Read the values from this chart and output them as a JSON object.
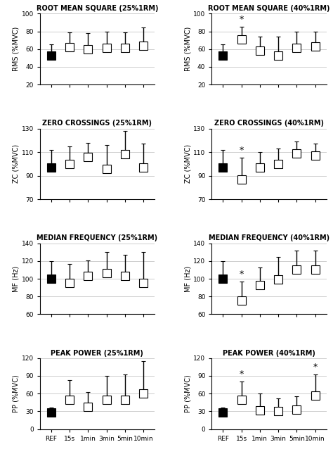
{
  "panels": [
    {
      "title": "ROOT MEAN SQUARE (25%1RM)",
      "ylabel": "RMS (%MVC)",
      "ylim": [
        20,
        100
      ],
      "yticks": [
        20,
        40,
        60,
        80,
        100
      ],
      "ref_val": 53,
      "ref_err_up": 12,
      "ref_err_dn": 0,
      "vals": [
        62,
        60,
        61,
        61,
        64
      ],
      "errs_up": [
        17,
        18,
        19,
        18,
        20
      ],
      "errs_dn": [
        0,
        0,
        0,
        0,
        0
      ],
      "stars": [
        0,
        0,
        0,
        0,
        0
      ]
    },
    {
      "title": "ROOT MEAN SQUARE (40%1RM)",
      "ylabel": "RMS (%MVC)",
      "ylim": [
        20,
        100
      ],
      "yticks": [
        20,
        40,
        60,
        80,
        100
      ],
      "ref_val": 53,
      "ref_err_up": 12,
      "ref_err_dn": 0,
      "vals": [
        71,
        58,
        53,
        61,
        63
      ],
      "errs_up": [
        14,
        16,
        21,
        19,
        17
      ],
      "errs_dn": [
        0,
        0,
        0,
        0,
        0
      ],
      "stars": [
        1,
        0,
        0,
        0,
        0
      ]
    },
    {
      "title": "ZERO CROSSINGS (25%1RM)",
      "ylabel": "ZC (%MVC)",
      "ylim": [
        70,
        130
      ],
      "yticks": [
        70,
        90,
        110,
        130
      ],
      "ref_val": 97,
      "ref_err_up": 15,
      "ref_err_dn": 0,
      "vals": [
        100,
        106,
        96,
        108,
        97
      ],
      "errs_up": [
        15,
        12,
        20,
        20,
        20
      ],
      "errs_dn": [
        0,
        0,
        0,
        0,
        0
      ],
      "stars": [
        0,
        0,
        0,
        0,
        0
      ]
    },
    {
      "title": "ZERO CROSSINGS (40%1RM)",
      "ylabel": "ZC (%MVC)",
      "ylim": [
        70,
        130
      ],
      "yticks": [
        70,
        90,
        110,
        130
      ],
      "ref_val": 97,
      "ref_err_up": 15,
      "ref_err_dn": 0,
      "vals": [
        87,
        97,
        100,
        109,
        107
      ],
      "errs_up": [
        18,
        13,
        13,
        10,
        10
      ],
      "errs_dn": [
        0,
        0,
        0,
        0,
        0
      ],
      "stars": [
        1,
        0,
        0,
        0,
        0
      ]
    },
    {
      "title": "MEDIAN FREQUENCY (25%1RM)",
      "ylabel": "MF (Hz)",
      "ylim": [
        60,
        140
      ],
      "yticks": [
        60,
        80,
        100,
        120,
        140
      ],
      "ref_val": 100,
      "ref_err_up": 20,
      "ref_err_dn": 0,
      "vals": [
        95,
        103,
        106,
        103,
        95
      ],
      "errs_up": [
        22,
        18,
        24,
        24,
        35
      ],
      "errs_dn": [
        0,
        0,
        0,
        0,
        0
      ],
      "stars": [
        0,
        0,
        0,
        0,
        0
      ]
    },
    {
      "title": "MEDIAN FREQUENCY (40%1RM)",
      "ylabel": "MF (Hz)",
      "ylim": [
        60,
        140
      ],
      "yticks": [
        60,
        80,
        100,
        120,
        140
      ],
      "ref_val": 100,
      "ref_err_up": 20,
      "ref_err_dn": 0,
      "vals": [
        75,
        93,
        99,
        110,
        110
      ],
      "errs_up": [
        22,
        20,
        26,
        22,
        22
      ],
      "errs_dn": [
        0,
        0,
        0,
        0,
        0
      ],
      "stars": [
        1,
        0,
        0,
        0,
        0
      ]
    },
    {
      "title": "PEAK POWER (25%1RM)",
      "ylabel": "PP (%MVC)",
      "ylim": [
        0,
        120
      ],
      "yticks": [
        0,
        30,
        60,
        90,
        120
      ],
      "ref_val": 28,
      "ref_err_up": 8,
      "ref_err_dn": 0,
      "vals": [
        50,
        37,
        50,
        50,
        60
      ],
      "errs_up": [
        33,
        25,
        40,
        42,
        55
      ],
      "errs_dn": [
        0,
        0,
        0,
        0,
        0
      ],
      "stars": [
        0,
        0,
        0,
        0,
        0
      ]
    },
    {
      "title": "PEAK POWER (40%1RM)",
      "ylabel": "PP (%MVC)",
      "ylim": [
        0,
        120
      ],
      "yticks": [
        0,
        30,
        60,
        90,
        120
      ],
      "ref_val": 28,
      "ref_err_up": 8,
      "ref_err_dn": 0,
      "vals": [
        50,
        32,
        30,
        33,
        57
      ],
      "errs_up": [
        30,
        28,
        22,
        22,
        35
      ],
      "errs_dn": [
        0,
        0,
        0,
        0,
        0
      ],
      "stars": [
        1,
        0,
        0,
        0,
        1
      ]
    }
  ],
  "xticklabels": [
    "REF",
    "15s",
    "1min",
    "3min",
    "5min",
    "10min"
  ],
  "title_fontsize": 7,
  "label_fontsize": 7,
  "tick_fontsize": 6.5,
  "marker_size": 8
}
